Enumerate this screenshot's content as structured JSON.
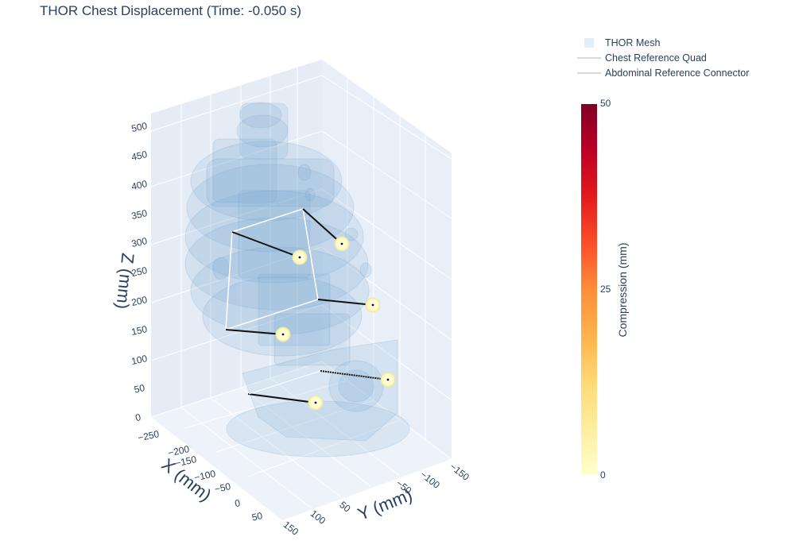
{
  "title": "THOR Chest Displacement (Time: -0.050 s)",
  "colors": {
    "mesh": "#6f9fcb",
    "pane": "#e5ecf6",
    "grid": "#ffffff",
    "reference_quad": "#ffffff",
    "connector": "#111111",
    "marker": "#fffcc4",
    "colorscale": [
      "#ffffcc",
      "#ffeda0",
      "#fed976",
      "#feb24c",
      "#fd8d3c",
      "#fc4e2a",
      "#e31a1c",
      "#bd0026",
      "#800026"
    ]
  },
  "legend": {
    "items": [
      {
        "name": "THOR Mesh",
        "symbol": "square"
      },
      {
        "name": "Chest Reference Quad",
        "symbol": "line"
      },
      {
        "name": "Abdominal Reference Connector",
        "symbol": "line"
      }
    ]
  },
  "colorbar": {
    "title": "Compression (mm)",
    "ticks": [
      "50",
      "25",
      "0"
    ],
    "range": [
      0,
      50
    ],
    "colorscale": "YlOrRd"
  },
  "chart_data": {
    "type": "scatter3d",
    "title": "THOR Chest Displacement (Time: -0.050 s)",
    "axes": {
      "x": {
        "title": "X (mm)",
        "ticks": [
          "−250",
          "−200",
          "−150",
          "−100",
          "−50",
          "0",
          "50"
        ],
        "range": [
          -250,
          60
        ]
      },
      "y": {
        "title": "Y (mm)",
        "ticks": [
          "150",
          "100",
          "50",
          "−50",
          "−100",
          "−150"
        ],
        "range": [
          -160,
          160
        ]
      },
      "z": {
        "title": "Z (mm)",
        "ticks": [
          "0",
          "50",
          "100",
          "150",
          "200",
          "250",
          "300",
          "350",
          "400",
          "450",
          "500"
        ],
        "range": [
          0,
          520
        ]
      }
    },
    "chest_markers": [
      {
        "label": "upper-left",
        "compression": 0
      },
      {
        "label": "upper-right",
        "compression": 0
      },
      {
        "label": "lower-left",
        "compression": 0
      },
      {
        "label": "lower-right",
        "compression": 0
      }
    ],
    "abdominal_markers": [
      {
        "label": "left",
        "compression": 0
      },
      {
        "label": "right",
        "compression": 0
      }
    ]
  }
}
